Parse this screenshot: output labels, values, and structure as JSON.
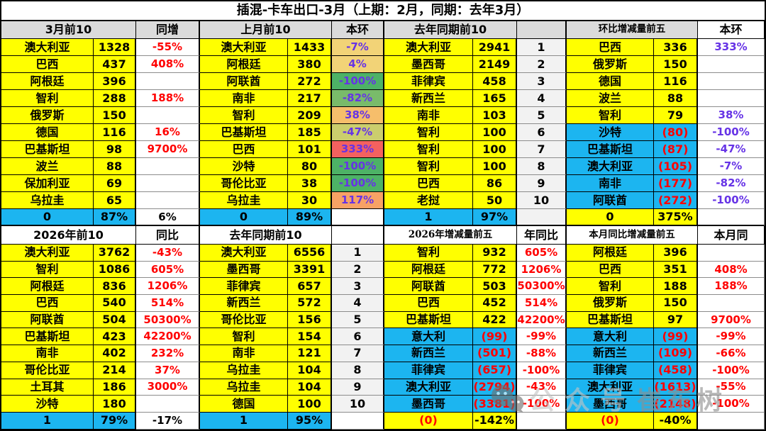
{
  "colors": {
    "yellow": "#FFFF00",
    "cyan": "#1CB5F0",
    "header_grey": "#DBDBDB",
    "rank_grey": "#F2F2F2",
    "red": "#FF0000",
    "violet": "#6633E6",
    "scale": {
      "khaki": "#F2D377",
      "green": "#4DB266",
      "green2": "#79BB6A",
      "amber": "#F6BE6B",
      "olive": "#CBCE6D",
      "red": "#F4615F",
      "orange": "#F7A265"
    }
  },
  "watermark": {
    "label_1": "公众号",
    "label_2": "崔东树"
  },
  "chart_data": {
    "type": "table",
    "title": "插混-卡车出口-3月（上期：2月，同期：去年3月）",
    "top": {
      "groups": [
        {
          "header": "3月前10",
          "pct_header": "同增",
          "rows": [
            [
              "澳大利亚",
              "1328",
              "-55%",
              ""
            ],
            [
              "巴西",
              "437",
              "408%",
              ""
            ],
            [
              "阿根廷",
              "396",
              "",
              ""
            ],
            [
              "智利",
              "288",
              "188%",
              ""
            ],
            [
              "俄罗斯",
              "150",
              "",
              ""
            ],
            [
              "德国",
              "116",
              "16%",
              ""
            ],
            [
              "巴基斯坦",
              "98",
              "9700%",
              ""
            ],
            [
              "波兰",
              "88",
              "",
              ""
            ],
            [
              "保加利亚",
              "69",
              "",
              ""
            ],
            [
              "乌拉圭",
              "65",
              "",
              ""
            ]
          ],
          "total": [
            "0",
            "87%",
            "6%"
          ]
        },
        {
          "header": "上月前10",
          "pct_header": "本环",
          "rows": [
            [
              "澳大利亚",
              "1433",
              "-7%",
              "khaki"
            ],
            [
              "阿根廷",
              "380",
              "4%",
              "khaki"
            ],
            [
              "阿联酋",
              "272",
              "-100%",
              "green"
            ],
            [
              "南非",
              "217",
              "-82%",
              "green2"
            ],
            [
              "智利",
              "209",
              "38%",
              "amber"
            ],
            [
              "巴基斯坦",
              "185",
              "-47%",
              "olive"
            ],
            [
              "巴西",
              "101",
              "333%",
              "red"
            ],
            [
              "沙特",
              "80",
              "-100%",
              "green"
            ],
            [
              "哥伦比亚",
              "38",
              "-100%",
              "green"
            ],
            [
              "乌拉圭",
              "30",
              "117%",
              "orange"
            ]
          ],
          "total": [
            "0",
            "89%",
            ""
          ]
        },
        {
          "header": "去年同期前10",
          "pct_header": "",
          "rows": [
            [
              "澳大利亚",
              "2941",
              "1",
              ""
            ],
            [
              "墨西哥",
              "2149",
              "2",
              ""
            ],
            [
              "菲律宾",
              "458",
              "3",
              ""
            ],
            [
              "新西兰",
              "165",
              "4",
              ""
            ],
            [
              "南非",
              "103",
              "5",
              ""
            ],
            [
              "智利",
              "100",
              "6",
              ""
            ],
            [
              "智利",
              "100",
              "7",
              ""
            ],
            [
              "智利",
              "100",
              "8",
              ""
            ],
            [
              "巴西",
              "86",
              "9",
              ""
            ],
            [
              "老挝",
              "50",
              "10",
              ""
            ]
          ],
          "total": [
            "1",
            "97%",
            ""
          ]
        },
        {
          "header": "环比增减量前五",
          "pct_header": "本环",
          "rows": [
            [
              "巴西",
              "336",
              "333%",
              ""
            ],
            [
              "俄罗斯",
              "150",
              "",
              ""
            ],
            [
              "德国",
              "116",
              "",
              ""
            ],
            [
              "波兰",
              "88",
              "",
              ""
            ],
            [
              "智利",
              "79",
              "38%",
              ""
            ],
            [
              "沙特",
              "(80)",
              "-100%",
              "neg"
            ],
            [
              "巴基斯坦",
              "(87)",
              "-47%",
              "neg"
            ],
            [
              "澳大利亚",
              "(105)",
              "-7%",
              "neg"
            ],
            [
              "南非",
              "(177)",
              "-82%",
              "neg"
            ],
            [
              "阿联酋",
              "(272)",
              "-100%",
              "neg"
            ]
          ],
          "total": [
            "0",
            "375%",
            ""
          ]
        }
      ]
    },
    "bottom": {
      "groups": [
        {
          "header": "2026年前10",
          "pct_header": "同比",
          "rows": [
            [
              "澳大利亚",
              "3762",
              "-43%",
              ""
            ],
            [
              "智利",
              "1086",
              "605%",
              ""
            ],
            [
              "阿根廷",
              "836",
              "1206%",
              ""
            ],
            [
              "巴西",
              "540",
              "514%",
              ""
            ],
            [
              "阿联酋",
              "504",
              "50300%",
              ""
            ],
            [
              "巴基斯坦",
              "423",
              "42200%",
              ""
            ],
            [
              "南非",
              "402",
              "232%",
              ""
            ],
            [
              "哥伦比亚",
              "214",
              "37%",
              ""
            ],
            [
              "土耳其",
              "186",
              "3000%",
              ""
            ],
            [
              "沙特",
              "180",
              "",
              ""
            ]
          ],
          "total": [
            "1",
            "79%",
            "-17%"
          ]
        },
        {
          "header": "去年同期前10",
          "pct_header": "",
          "rows": [
            [
              "澳大利亚",
              "6556",
              "1",
              ""
            ],
            [
              "墨西哥",
              "3391",
              "2",
              ""
            ],
            [
              "菲律宾",
              "657",
              "3",
              ""
            ],
            [
              "新西兰",
              "572",
              "4",
              ""
            ],
            [
              "哥伦比亚",
              "156",
              "5",
              ""
            ],
            [
              "智利",
              "154",
              "6",
              ""
            ],
            [
              "南非",
              "121",
              "7",
              ""
            ],
            [
              "乌拉圭",
              "104",
              "8",
              ""
            ],
            [
              "乌拉圭",
              "104",
              "9",
              ""
            ],
            [
              "德国",
              "100",
              "10",
              ""
            ]
          ],
          "total": [
            "1",
            "95%",
            ""
          ]
        },
        {
          "header": "2026年增减量前五",
          "pct_header": "年同比",
          "rows": [
            [
              "智利",
              "932",
              "605%",
              ""
            ],
            [
              "阿根廷",
              "772",
              "1206%",
              ""
            ],
            [
              "阿联酋",
              "503",
              "50300%",
              ""
            ],
            [
              "巴西",
              "452",
              "514%",
              ""
            ],
            [
              "巴基斯坦",
              "422",
              "42200%",
              ""
            ],
            [
              "意大利",
              "(99)",
              "-99%",
              "neg"
            ],
            [
              "新西兰",
              "(501)",
              "-88%",
              "neg"
            ],
            [
              "菲律宾",
              "(657)",
              "-100%",
              "neg"
            ],
            [
              "澳大利亚",
              "(2794)",
              "-43%",
              "neg"
            ],
            [
              "墨西哥",
              "(3381)",
              "-100%",
              "neg"
            ]
          ],
          "total": [
            "(0)",
            "-142%",
            ""
          ]
        },
        {
          "header": "本月同比增减量前五",
          "pct_header": "本月同",
          "rows": [
            [
              "阿根廷",
              "396",
              "",
              ""
            ],
            [
              "巴西",
              "351",
              "408%",
              ""
            ],
            [
              "智利",
              "188",
              "188%",
              ""
            ],
            [
              "俄罗斯",
              "150",
              "",
              ""
            ],
            [
              "巴基斯坦",
              "97",
              "9700%",
              ""
            ],
            [
              "意大利",
              "(99)",
              "-99%",
              "neg"
            ],
            [
              "新西兰",
              "(109)",
              "-66%",
              "neg"
            ],
            [
              "菲律宾",
              "(458)",
              "-100%",
              "neg"
            ],
            [
              "澳大利亚",
              "(1613)",
              "-55%",
              "neg"
            ],
            [
              "墨西哥",
              "(2148)",
              "-100%",
              "neg"
            ]
          ],
          "total": [
            "(0)",
            "-40%",
            ""
          ]
        }
      ]
    }
  }
}
